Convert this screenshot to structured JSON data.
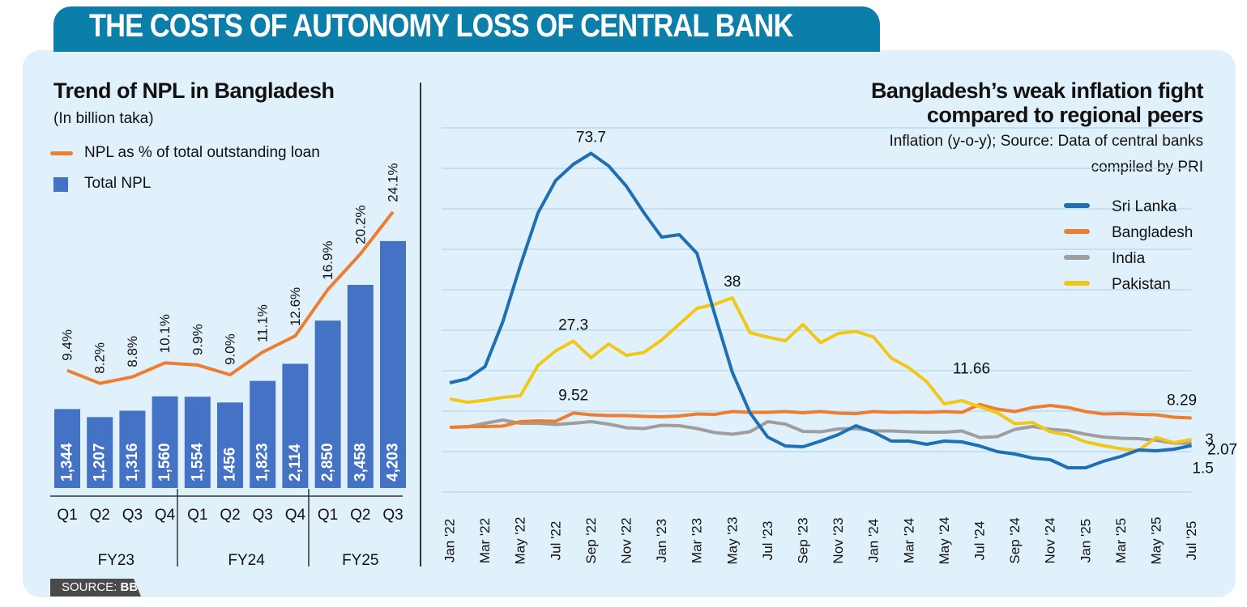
{
  "header": {
    "title": "THE COSTS OF AUTONOMY LOSS OF CENTRAL BANK"
  },
  "source": {
    "label": "SOURCE:",
    "value": "BB"
  },
  "colors": {
    "tab": "#0b7fa9",
    "panel": "#e1f1fb",
    "bar": "#4472c4",
    "npl_line": "#ed7d31",
    "sri_lanka": "#1f6fb5",
    "bangladesh": "#ed7d31",
    "india": "#9e9e9e",
    "pakistan": "#f2c71b",
    "grid": "#b9dcef"
  },
  "chart_data": [
    {
      "type": "bar+line",
      "title": "Trend of NPL in Bangladesh",
      "subtitle": "(In billion taka)",
      "legend": [
        {
          "name": "NPL as % of total outstanding loan",
          "kind": "line"
        },
        {
          "name": "Total NPL",
          "kind": "bar"
        }
      ],
      "legend_placement": "top-left",
      "categories": [
        "Q1",
        "Q2",
        "Q3",
        "Q4",
        "Q1",
        "Q2",
        "Q3",
        "Q4",
        "Q1",
        "Q2",
        "Q3"
      ],
      "groups": [
        {
          "label": "FY23",
          "count": 4
        },
        {
          "label": "FY24",
          "count": 4
        },
        {
          "label": "FY25",
          "count": 3
        }
      ],
      "bars": {
        "name": "Total NPL",
        "values": [
          1344,
          1207,
          1316,
          1560,
          1554,
          1456,
          1823,
          2114,
          2850,
          3458,
          4203
        ],
        "labels": [
          "1,344",
          "1,207",
          "1,316",
          "1,560",
          "1,554",
          "1456",
          "1,823",
          "2,114",
          "2,850",
          "3,458",
          "4,203"
        ]
      },
      "line": {
        "name": "NPL as % of total outstanding loan",
        "values": [
          9.4,
          8.2,
          8.8,
          10.1,
          9.9,
          9.0,
          11.1,
          12.6,
          16.9,
          20.2,
          24.1
        ],
        "labels": [
          "9.4%",
          "8.2%",
          "8.8%",
          "10.1%",
          "9.9%",
          "9.0%",
          "11.1%",
          "12.6%",
          "16.9%",
          "20.2%",
          "24.1%"
        ]
      }
    },
    {
      "type": "line",
      "title_lines": [
        "Bangladesh’s weak inflation fight",
        "compared to regional peers"
      ],
      "subtitle_lines": [
        "Inflation (y-o-y); Source: Data of central banks",
        "compiled by PRI"
      ],
      "ylim": [
        -10,
        80
      ],
      "grid": true,
      "legend_placement": "top-right",
      "x_tick_labels": [
        "Jan '22",
        "Mar '22",
        "May '22",
        "Jul '22",
        "Sep '22",
        "Nov '22",
        "Jan '23",
        "Mar '23",
        "May '23",
        "Jul '23",
        "Sep '23",
        "Nov '23",
        "Jan '24",
        "Mar '24",
        "May '24",
        "Jul '24",
        "Sep '24",
        "Nov '24",
        "Jan '25",
        "Mar '25",
        "May '25",
        "Jul '25"
      ],
      "x_range": [
        "Jan 2022",
        "Jul 2025"
      ],
      "series": [
        {
          "name": "Sri Lanka",
          "color": "#1f6fb5",
          "values": [
            17,
            18,
            21,
            32,
            46,
            59,
            67,
            71,
            73.7,
            70.6,
            65.6,
            59,
            53,
            53.6,
            49,
            34,
            19.6,
            9.6,
            3.6,
            1.4,
            1.2,
            2.6,
            4.2,
            6.4,
            4.8,
            2.6,
            2.6,
            1.8,
            2.6,
            2.4,
            1.4,
            0,
            -0.6,
            -1.6,
            -2,
            -4,
            -4,
            -2.4,
            -1.2,
            0.4,
            0.2,
            0.6,
            1.5
          ]
        },
        {
          "name": "Bangladesh",
          "color": "#ed7d31",
          "values": [
            6.0,
            6.2,
            6.2,
            6.3,
            7.4,
            7.6,
            7.5,
            9.52,
            9.1,
            8.9,
            8.9,
            8.7,
            8.6,
            8.8,
            9.3,
            9.2,
            9.9,
            9.7,
            9.7,
            9.9,
            9.6,
            9.9,
            9.5,
            9.4,
            9.9,
            9.7,
            9.8,
            9.7,
            9.9,
            9.7,
            11.66,
            10.5,
            9.9,
            10.9,
            11.4,
            10.9,
            9.9,
            9.3,
            9.4,
            9.2,
            9.1,
            8.5,
            8.29
          ]
        },
        {
          "name": "India",
          "color": "#9e9e9e",
          "values": [
            6.0,
            6.1,
            7.0,
            7.8,
            7.0,
            7.0,
            6.7,
            7.0,
            7.4,
            6.8,
            5.9,
            5.7,
            6.5,
            6.4,
            5.7,
            4.7,
            4.3,
            4.9,
            7.4,
            6.8,
            5.0,
            4.9,
            5.6,
            5.7,
            5.1,
            5.1,
            4.9,
            4.8,
            4.8,
            5.1,
            3.5,
            3.7,
            5.5,
            6.2,
            5.5,
            5.2,
            4.3,
            3.6,
            3.3,
            3.2,
            2.8,
            2.1,
            2.07
          ]
        },
        {
          "name": "Pakistan",
          "color": "#f2c71b",
          "values": [
            13,
            12.2,
            12.7,
            13.4,
            13.8,
            21.3,
            24.9,
            27.3,
            23.2,
            26.6,
            23.8,
            24.5,
            27.6,
            31.5,
            35.4,
            36.4,
            38,
            29.4,
            28.3,
            27.4,
            31.4,
            26.9,
            29.2,
            29.7,
            28.3,
            23.1,
            20.7,
            17.3,
            11.8,
            12.6,
            11.1,
            9.6,
            6.9,
            7.2,
            4.9,
            4.1,
            2.4,
            1.5,
            0.7,
            0.3,
            3.5,
            2.2,
            3
          ]
        }
      ],
      "annotations": [
        {
          "text": "73.7",
          "series": "Sri Lanka",
          "month": "Sep '22"
        },
        {
          "text": "38",
          "series": "Pakistan",
          "month": "May '23"
        },
        {
          "text": "27.3",
          "series": "Pakistan",
          "month": "Aug '22"
        },
        {
          "text": "9.52",
          "series": "Bangladesh",
          "month": "Aug '22"
        },
        {
          "text": "11.66",
          "series": "Bangladesh",
          "month": "Jul '24"
        },
        {
          "text": "8.29",
          "series": "Bangladesh",
          "month": "Jul '25"
        },
        {
          "text": "3",
          "series": "Pakistan",
          "month": "Jul '25"
        },
        {
          "text": "2.07",
          "series": "India",
          "month": "Jul '25"
        },
        {
          "text": "1.5",
          "series": "Sri Lanka",
          "month": "Jul '25"
        }
      ]
    }
  ]
}
